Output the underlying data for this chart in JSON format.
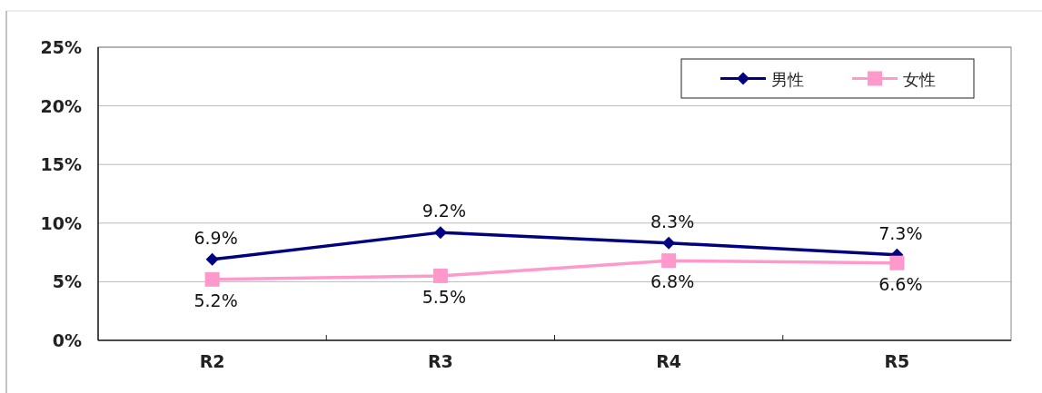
{
  "chart_data": {
    "type": "line",
    "categories": [
      "R2",
      "R3",
      "R4",
      "R5"
    ],
    "series": [
      {
        "name": "男性",
        "color": "#000080",
        "marker": "diamond",
        "values": [
          6.9,
          9.2,
          8.3,
          7.3
        ],
        "value_labels": [
          "6.9%",
          "9.2%",
          "8.3%",
          "7.3%"
        ]
      },
      {
        "name": "女性",
        "color": "#ff99cc",
        "marker": "square",
        "values": [
          5.2,
          5.5,
          6.8,
          6.6
        ],
        "value_labels": [
          "5.2%",
          "5.5%",
          "6.8%",
          "6.6%"
        ]
      }
    ],
    "ylim": [
      0,
      25
    ],
    "yticks": [
      {
        "value": 0,
        "label": "0%"
      },
      {
        "value": 5,
        "label": "5%"
      },
      {
        "value": 10,
        "label": "10%"
      },
      {
        "value": 15,
        "label": "15%"
      },
      {
        "value": 20,
        "label": "20%"
      },
      {
        "value": 25,
        "label": "25%"
      }
    ],
    "grid": "y",
    "legend": "top right"
  }
}
